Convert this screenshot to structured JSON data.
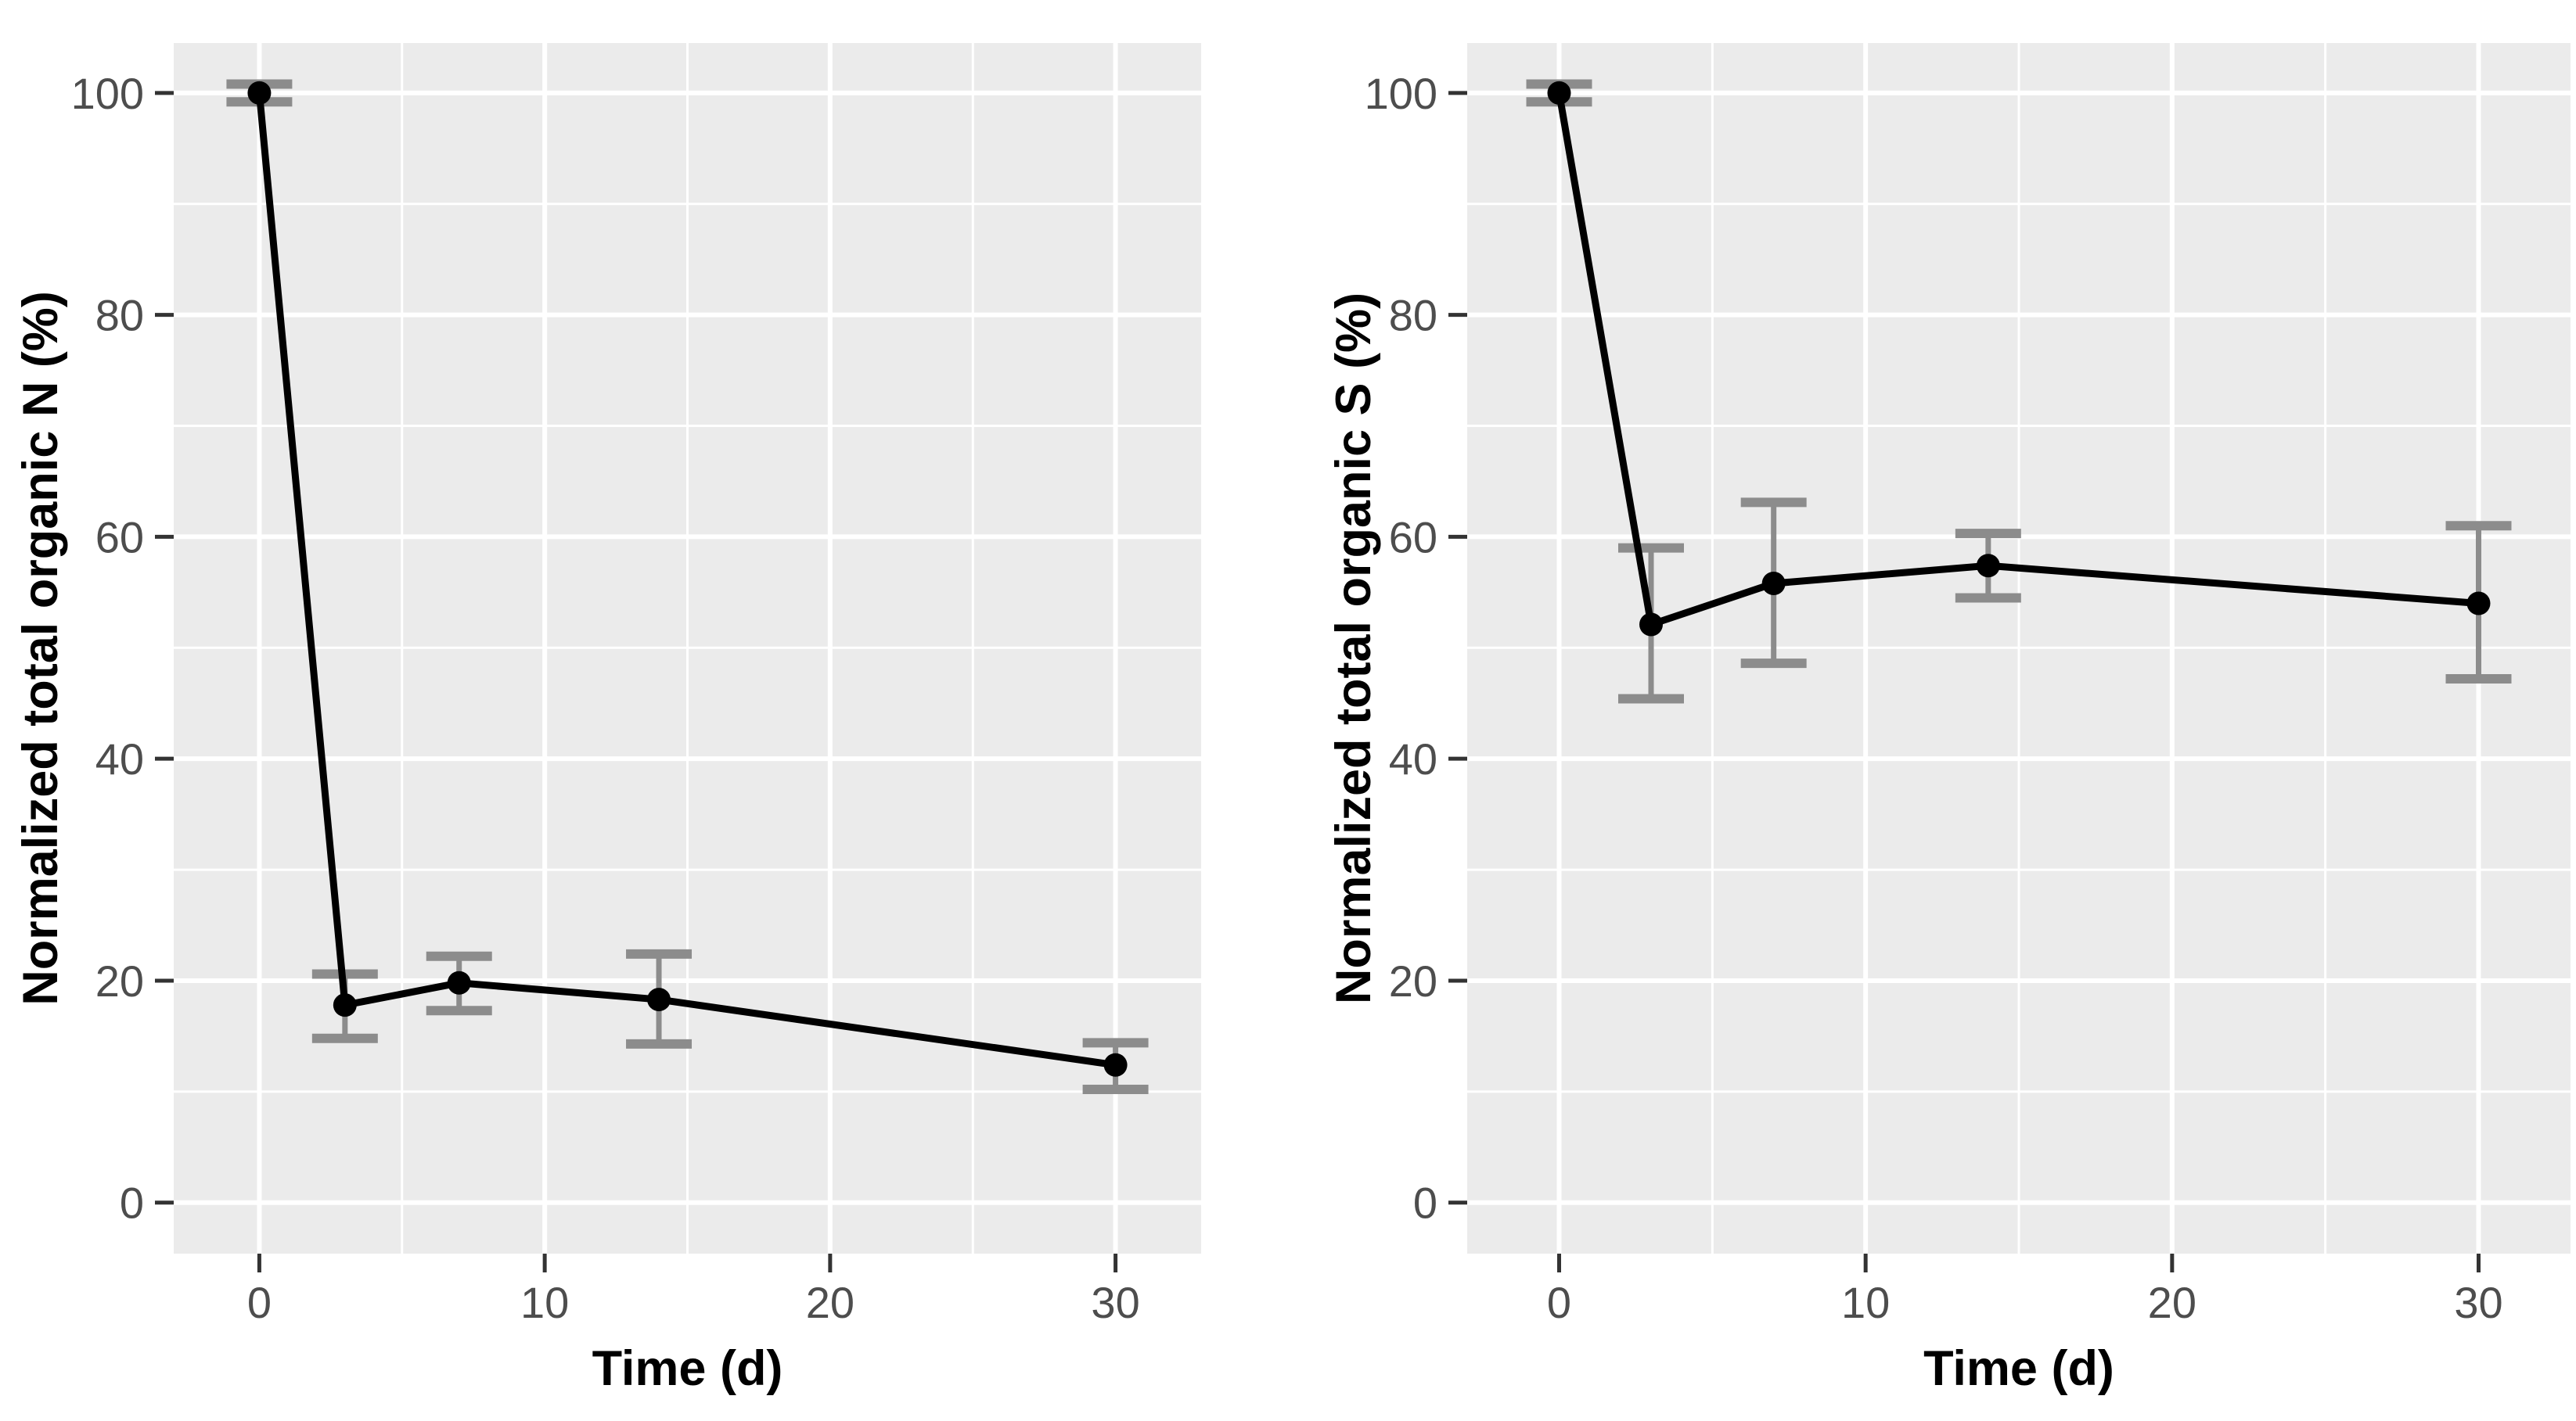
{
  "figure": {
    "background": "#ffffff",
    "description": "Two side-by-side line charts with error bars"
  },
  "style": {
    "panel_bg": "#EBEBEB",
    "grid": "#FFFFFF",
    "line": "#000000",
    "point": "#000000",
    "error_bar": "#8C8C8C",
    "tick_mark": "#333333",
    "tick_label": "#4D4D4D",
    "axis_title": "#000000"
  },
  "chart_data": [
    {
      "type": "line",
      "title": "",
      "xlabel": "Time (d)",
      "ylabel": "Normalized total organic N (%)",
      "x": [
        0,
        3,
        7,
        14,
        30
      ],
      "series": [
        {
          "name": "Normalized total organic N",
          "values": [
            100,
            17.8,
            19.8,
            18.3,
            12.4
          ]
        }
      ],
      "error_low": [
        99.2,
        14.8,
        17.3,
        14.3,
        10.2
      ],
      "error_high": [
        100.8,
        20.6,
        22.2,
        22.4,
        14.4
      ],
      "xlim": [
        -3,
        33
      ],
      "ylim": [
        -4.6,
        104.5
      ],
      "xticks": [
        0,
        10,
        20,
        30
      ],
      "yticks": [
        0,
        20,
        40,
        60,
        80,
        100
      ],
      "xticks_minor": [
        5,
        15,
        25
      ],
      "yticks_minor": [
        10,
        30,
        50,
        70,
        90
      ],
      "grid": "white major and minor gridlines on grey panel",
      "legend": false
    },
    {
      "type": "line",
      "title": "",
      "xlabel": "Time (d)",
      "ylabel": "Normalized total organic S (%)",
      "x": [
        0,
        3,
        7,
        14,
        30
      ],
      "series": [
        {
          "name": "Normalized total organic S",
          "values": [
            100,
            52.1,
            55.8,
            57.4,
            54.0
          ]
        }
      ],
      "error_low": [
        99.2,
        45.4,
        48.6,
        54.5,
        47.2
      ],
      "error_high": [
        100.8,
        59.0,
        63.1,
        60.3,
        61.0
      ],
      "xlim": [
        -3,
        33
      ],
      "ylim": [
        -4.6,
        104.5
      ],
      "xticks": [
        0,
        10,
        20,
        30
      ],
      "yticks": [
        0,
        20,
        40,
        60,
        80,
        100
      ],
      "xticks_minor": [
        5,
        15,
        25
      ],
      "yticks_minor": [
        10,
        30,
        50,
        70,
        90
      ],
      "grid": "white major and minor gridlines on grey panel",
      "legend": false
    }
  ]
}
